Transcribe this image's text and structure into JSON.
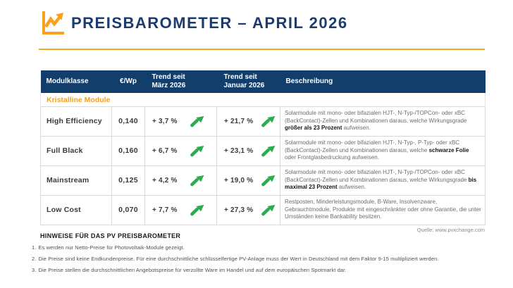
{
  "header": {
    "title": "PREISBAROMETER – APRIL 2026"
  },
  "colors": {
    "navy": "#123E6B",
    "orange": "#F6A01D",
    "green": "#2BAD4F"
  },
  "table": {
    "columns": {
      "modulklasse": "Modulklasse",
      "price": "€/Wp",
      "trend_maerz_line1": "Trend seit",
      "trend_maerz_line2": "März 2026",
      "trend_januar_line1": "Trend seit",
      "trend_januar_line2": "Januar 2026",
      "beschreibung": "Beschreibung"
    },
    "section_label": "Kristalline Module",
    "rows": [
      {
        "name": "High Efficiency",
        "price": "0,140",
        "trend_maerz": "+ 3,7 %",
        "trend_maerz_direction": "up",
        "trend_januar": "+ 21,7 %",
        "trend_januar_direction": "up",
        "description_parts": [
          {
            "text": "Solarmodule mit mono- oder bifazialen HJT-, N-Typ-/TOPCon- oder xBC (BackContact)-Zellen und Kombinationen daraus, welche Wirkungsgrade ",
            "bold": false
          },
          {
            "text": "größer als 23 Prozent",
            "bold": true
          },
          {
            "text": " aufweisen.",
            "bold": false
          }
        ]
      },
      {
        "name": "Full Black",
        "price": "0,160",
        "trend_maerz": "+ 6,7 %",
        "trend_maerz_direction": "up",
        "trend_januar": "+ 23,1 %",
        "trend_januar_direction": "up",
        "description_parts": [
          {
            "text": "Solarmodule mit mono- oder bifazialen HJT-, N-Typ-, P-Typ- oder xBC (BackContact)-Zellen und Kombinationen daraus, welche ",
            "bold": false
          },
          {
            "text": "schwarze Folie",
            "bold": true
          },
          {
            "text": " oder Frontglasbedruckung aufweisen.",
            "bold": false
          }
        ]
      },
      {
        "name": "Mainstream",
        "price": "0,125",
        "trend_maerz": "+ 4,2 %",
        "trend_maerz_direction": "up",
        "trend_januar": "+ 19,0 %",
        "trend_januar_direction": "up",
        "description_parts": [
          {
            "text": "Solarmodule mit mono- oder bifazialen HJT-, N-Typ-/TOPCon- oder xBC (BackContact)-Zellen und Kombinationen daraus, welche Wirkungsgrade ",
            "bold": false
          },
          {
            "text": "bis maximal 23 Prozent",
            "bold": true
          },
          {
            "text": " aufweisen.",
            "bold": false
          }
        ]
      },
      {
        "name": "Low Cost",
        "price": "0,070",
        "trend_maerz": "+ 7,7 %",
        "trend_maerz_direction": "up",
        "trend_januar": "+ 27,3 %",
        "trend_januar_direction": "up",
        "description_parts": [
          {
            "text": "Restposten, Minderleistungsmodule, B-Ware, Insolvenzware, Gebrauchtmodule, Produkte mit eingeschränkter oder ohne Garantie, die unter Umständen keine Bankability besitzen.",
            "bold": false
          }
        ]
      }
    ],
    "source": "Quelle: www.pvxchange.com"
  },
  "footer": {
    "heading": "HINWEISE FÜR DAS PV PREISBAROMETER",
    "notes": [
      {
        "num": "1.",
        "text": "Es werden nur Netto-Preise für Photovoltaik-Module gezeigt."
      },
      {
        "num": "2.",
        "text": "Die Preise sind keine Endkundenpreise. Für eine durchschnittliche schlüsselfertige PV-Anlage muss der Wert in Deutschland mit dem Faktor 9-15 multipliziert werden."
      },
      {
        "num": "3.",
        "text": "Die Preise stellen die durchschnittlichen Angebotspreise für verzollte Ware im Handel und auf dem europäischen Spotmarkt dar."
      }
    ]
  }
}
